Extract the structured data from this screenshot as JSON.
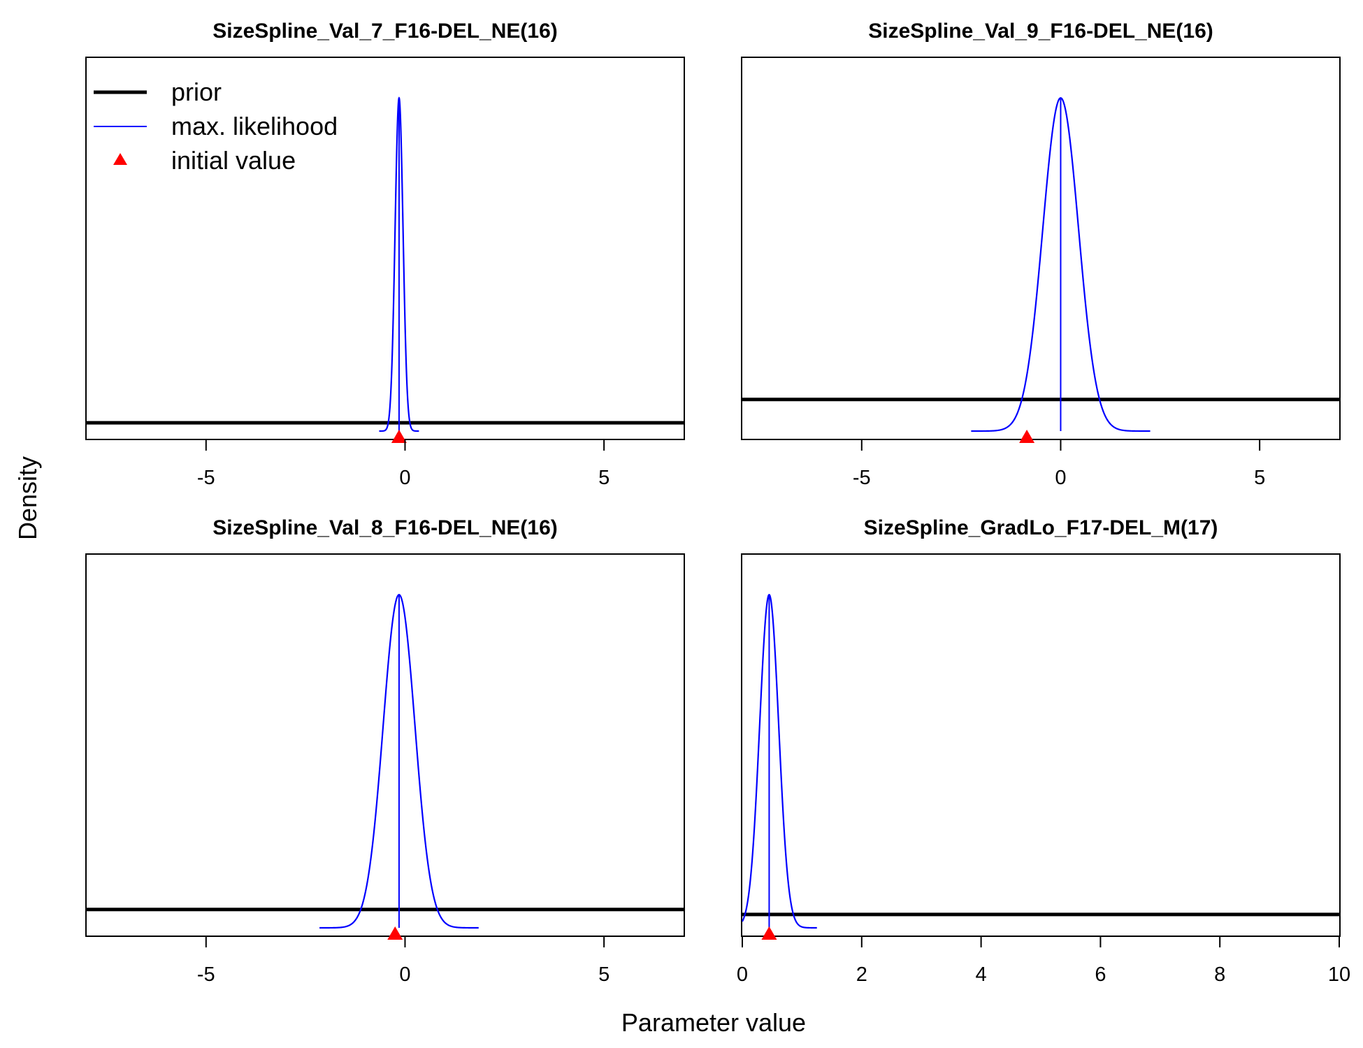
{
  "figure": {
    "ylabel": "Density",
    "xlabel": "Parameter value"
  },
  "legend": {
    "items": [
      {
        "label": "prior",
        "color": "#000000",
        "kind": "thick-line"
      },
      {
        "label": "max. likelihood",
        "color": "#0000ff",
        "kind": "thin-line"
      },
      {
        "label": "initial value",
        "color": "#ff0000",
        "kind": "triangle"
      }
    ]
  },
  "chart_data": [
    {
      "type": "line",
      "title": "SizeSpline_Val_7_F16-DEL_NE(16)",
      "xlim": [
        -8.0,
        7.0
      ],
      "xticks": [
        -5,
        0,
        5
      ],
      "ylim": [
        0,
        1.12
      ],
      "prior_density": 0.025,
      "mle": {
        "mean": -0.15,
        "sd": 0.1,
        "peak": 1.0
      },
      "initial_value": -0.15
    },
    {
      "type": "line",
      "title": "SizeSpline_Val_9_F16-DEL_NE(16)",
      "xlim": [
        -8.0,
        7.0
      ],
      "xticks": [
        -5,
        0,
        5
      ],
      "ylim": [
        0,
        1.12
      ],
      "prior_density": 0.095,
      "mle": {
        "mean": 0.0,
        "sd": 0.45,
        "peak": 1.0
      },
      "initial_value": -0.85
    },
    {
      "type": "line",
      "title": "SizeSpline_Val_8_F16-DEL_NE(16)",
      "xlim": [
        -8.0,
        7.0
      ],
      "xticks": [
        -5,
        0,
        5
      ],
      "ylim": [
        0,
        1.12
      ],
      "prior_density": 0.055,
      "mle": {
        "mean": -0.15,
        "sd": 0.4,
        "peak": 1.0
      },
      "initial_value": -0.25
    },
    {
      "type": "line",
      "title": "SizeSpline_GradLo_F17-DEL_M(17)",
      "xlim": [
        0,
        10
      ],
      "xticks": [
        0,
        2,
        4,
        6,
        8,
        10
      ],
      "ylim": [
        0,
        1.12
      ],
      "prior_density": 0.04,
      "mle": {
        "mean": 0.45,
        "sd": 0.16,
        "peak": 1.0
      },
      "initial_value": 0.45
    }
  ]
}
